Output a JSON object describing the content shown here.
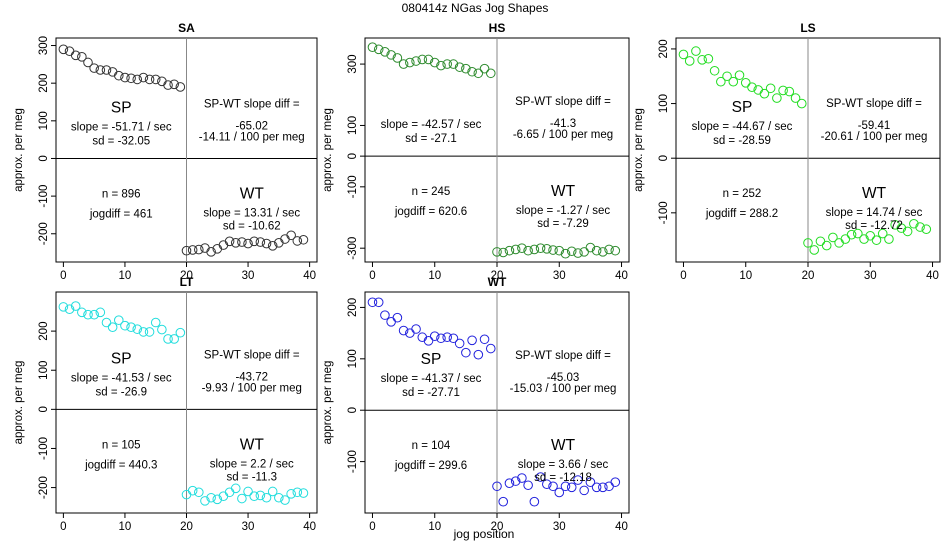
{
  "figure": {
    "title": "080414z   NGas Jog Shapes",
    "xlabel": "jog position"
  },
  "chart_data": [
    {
      "type": "scatter",
      "title": "SA",
      "ylabel": "approx. per meg",
      "color": "#333333",
      "xlim": [
        -1.2,
        41.2
      ],
      "ylim": [
        -275,
        320
      ],
      "xticks": [
        "0",
        "10",
        "20",
        "30",
        "40"
      ],
      "xtick_values": [
        0,
        10,
        20,
        30,
        40
      ],
      "yticks": [
        "-200",
        "-100",
        "0",
        "100",
        "200",
        "300"
      ],
      "ytick_values": [
        -200,
        -100,
        0,
        100,
        200,
        300
      ],
      "sp": {
        "x": [
          0,
          1,
          2,
          3,
          4,
          5,
          6,
          7,
          8,
          9,
          10,
          11,
          12,
          13,
          14,
          15,
          16,
          17,
          18,
          19
        ],
        "y": [
          290,
          285,
          274,
          270,
          255,
          240,
          235,
          235,
          230,
          220,
          215,
          213,
          210,
          215,
          210,
          210,
          205,
          195,
          197,
          190
        ]
      },
      "wt": {
        "x": [
          20,
          21,
          22,
          23,
          24,
          25,
          26,
          27,
          28,
          29,
          30,
          31,
          32,
          33,
          34,
          35,
          36,
          37,
          38,
          39
        ],
        "y": [
          -245,
          -243,
          -242,
          -238,
          -248,
          -240,
          -230,
          -220,
          -224,
          -222,
          -226,
          -220,
          -222,
          -226,
          -232,
          -224,
          -214,
          -204,
          -219,
          -216
        ]
      },
      "text": {
        "sp_label": "SP",
        "sp_slope": "slope = -51.71 / sec",
        "sp_sd": "sd = -32.05",
        "diff_label": "SP-WT slope diff =",
        "diff_value": "-65.02",
        "diff_per100": "-14.11 / 100 per meg",
        "n": "n = 896",
        "jogdiff": "jogdiff = 461",
        "wt_label": "WT",
        "wt_slope": "slope = 13.31 / sec",
        "wt_sd": "sd = -10.62"
      }
    },
    {
      "type": "scatter",
      "title": "HS",
      "ylabel": "approx. per meg",
      "color": "#2e8b2e",
      "xlim": [
        -1.2,
        41.2
      ],
      "ylim": [
        -345,
        385
      ],
      "xticks": [
        "0",
        "10",
        "20",
        "30",
        "40"
      ],
      "xtick_values": [
        0,
        10,
        20,
        30,
        40
      ],
      "yticks": [
        "-300",
        "-100",
        "0",
        "100",
        "300"
      ],
      "ytick_values": [
        -300,
        -100,
        0,
        100,
        300
      ],
      "sp": {
        "x": [
          0,
          1,
          2,
          3,
          4,
          5,
          6,
          7,
          8,
          9,
          10,
          11,
          12,
          13,
          14,
          15,
          16,
          17,
          18,
          19
        ],
        "y": [
          355,
          348,
          340,
          330,
          320,
          300,
          305,
          310,
          315,
          315,
          305,
          295,
          300,
          300,
          290,
          285,
          275,
          270,
          285,
          270
        ]
      },
      "wt": {
        "x": [
          20,
          21,
          22,
          23,
          24,
          25,
          26,
          27,
          28,
          29,
          30,
          31,
          32,
          33,
          34,
          35,
          36,
          37,
          38,
          39
        ],
        "y": [
          -312,
          -314,
          -308,
          -304,
          -300,
          -308,
          -304,
          -300,
          -302,
          -306,
          -308,
          -318,
          -310,
          -316,
          -312,
          -298,
          -308,
          -312,
          -304,
          -308
        ]
      },
      "text": {
        "sp_label": "",
        "sp_slope": "slope = -42.57 / sec",
        "sp_sd": "sd = -27.1",
        "diff_label": "SP-WT slope diff =",
        "diff_value": "-41.3",
        "diff_per100": "-6.65 / 100 per meg",
        "n": "n = 245",
        "jogdiff": "jogdiff = 620.6",
        "wt_label": "WT",
        "wt_slope": "slope = -1.27 / sec",
        "wt_sd": "sd = -7.29"
      }
    },
    {
      "type": "scatter",
      "title": "LS",
      "ylabel": "approx. per meg",
      "color": "#22dd22",
      "xlim": [
        -1.2,
        41.2
      ],
      "ylim": [
        -190,
        220
      ],
      "xticks": [
        "0",
        "10",
        "20",
        "30",
        "40"
      ],
      "xtick_values": [
        0,
        10,
        20,
        30,
        40
      ],
      "yticks": [
        "-100",
        "0",
        "100",
        "200"
      ],
      "ytick_values": [
        -100,
        0,
        100,
        200
      ],
      "sp": {
        "x": [
          0,
          1,
          2,
          3,
          4,
          5,
          6,
          7,
          8,
          9,
          10,
          11,
          12,
          13,
          14,
          15,
          16,
          17,
          18,
          19
        ],
        "y": [
          190,
          178,
          196,
          180,
          182,
          160,
          140,
          150,
          140,
          152,
          138,
          130,
          125,
          118,
          128,
          110,
          124,
          122,
          110,
          100
        ]
      },
      "wt": {
        "x": [
          20,
          21,
          22,
          23,
          24,
          25,
          26,
          27,
          28,
          29,
          30,
          31,
          32,
          33,
          34,
          35,
          36,
          37,
          38,
          39
        ],
        "y": [
          -155,
          -168,
          -152,
          -160,
          -145,
          -155,
          -148,
          -140,
          -138,
          -148,
          -142,
          -150,
          -138,
          -148,
          -122,
          -128,
          -134,
          -120,
          -126,
          -130
        ]
      },
      "text": {
        "sp_label": "SP",
        "sp_slope": "slope = -44.67 / sec",
        "sp_sd": "sd = -28.59",
        "diff_label": "SP-WT slope diff =",
        "diff_value": "-59.41",
        "diff_per100": "-20.61 / 100 per meg",
        "n": "n = 252",
        "jogdiff": "jogdiff = 288.2",
        "wt_label": "WT",
        "wt_slope": "slope = 14.74 / sec",
        "wt_sd": "sd = -12.72"
      }
    },
    {
      "type": "scatter",
      "title": "LT",
      "ylabel": "approx. per meg",
      "color": "#22dddd",
      "xlim": [
        -1.2,
        41.2
      ],
      "ylim": [
        -265,
        300
      ],
      "xticks": [
        "0",
        "10",
        "20",
        "30",
        "40"
      ],
      "xtick_values": [
        0,
        10,
        20,
        30,
        40
      ],
      "yticks": [
        "-200",
        "-100",
        "0",
        "100",
        "200"
      ],
      "ytick_values": [
        -200,
        -100,
        0,
        100,
        200
      ],
      "sp": {
        "x": [
          0,
          1,
          2,
          3,
          4,
          5,
          6,
          7,
          8,
          9,
          10,
          11,
          12,
          13,
          14,
          15,
          16,
          17,
          18,
          19
        ],
        "y": [
          262,
          256,
          264,
          248,
          242,
          242,
          248,
          222,
          210,
          228,
          214,
          210,
          205,
          198,
          198,
          222,
          204,
          180,
          180,
          196
        ]
      },
      "wt": {
        "x": [
          20,
          21,
          22,
          23,
          24,
          25,
          26,
          27,
          28,
          29,
          30,
          31,
          32,
          33,
          34,
          35,
          36,
          37,
          38,
          39
        ],
        "y": [
          -218,
          -208,
          -212,
          -234,
          -226,
          -230,
          -222,
          -212,
          -202,
          -228,
          -210,
          -222,
          -220,
          -226,
          -210,
          -226,
          -232,
          -216,
          -212,
          -214
        ]
      },
      "text": {
        "sp_label": "SP",
        "sp_slope": "slope = -41.53 / sec",
        "sp_sd": "sd = -26.9",
        "diff_label": "SP-WT slope diff =",
        "diff_value": "-43.72",
        "diff_per100": "-9.93 / 100 per meg",
        "n": "n = 105",
        "jogdiff": "jogdiff = 440.3",
        "wt_label": "WT",
        "wt_slope": "slope = 2.2 / sec",
        "wt_sd": "sd = -11.3"
      }
    },
    {
      "type": "scatter",
      "title": "WT",
      "ylabel": "approx. per meg",
      "color": "#2222dd",
      "xlim": [
        -1.2,
        41.2
      ],
      "ylim": [
        -200,
        230
      ],
      "xticks": [
        "0",
        "10",
        "20",
        "30",
        "40"
      ],
      "xtick_values": [
        0,
        10,
        20,
        30,
        40
      ],
      "yticks": [
        "-100",
        "0",
        "100",
        "200"
      ],
      "ytick_values": [
        -100,
        0,
        100,
        200
      ],
      "sp": {
        "x": [
          0,
          1,
          2,
          3,
          4,
          5,
          6,
          7,
          8,
          9,
          10,
          11,
          12,
          13,
          14,
          15,
          16,
          17,
          18,
          19
        ],
        "y": [
          210,
          210,
          185,
          172,
          180,
          155,
          150,
          158,
          142,
          135,
          144,
          140,
          142,
          140,
          130,
          112,
          136,
          108,
          138,
          120
        ]
      },
      "wt": {
        "x": [
          20,
          21,
          22,
          23,
          24,
          25,
          26,
          27,
          28,
          29,
          30,
          31,
          32,
          33,
          34,
          35,
          36,
          37,
          38,
          39
        ],
        "y": [
          -148,
          -178,
          -142,
          -138,
          -132,
          -146,
          -178,
          -130,
          -144,
          -148,
          -160,
          -148,
          -150,
          -136,
          -156,
          -140,
          -150,
          -150,
          -148,
          -140
        ]
      },
      "text": {
        "sp_label": "SP",
        "sp_slope": "slope = -41.37 / sec",
        "sp_sd": "sd = -27.71",
        "diff_label": "SP-WT slope diff =",
        "diff_value": "-45.03",
        "diff_per100": "-15.03 / 100 per meg",
        "n": "n = 104",
        "jogdiff": "jogdiff = 299.6",
        "wt_label": "WT",
        "wt_slope": "slope = 3.66 / sec",
        "wt_sd": "sd = -12.18"
      }
    }
  ]
}
